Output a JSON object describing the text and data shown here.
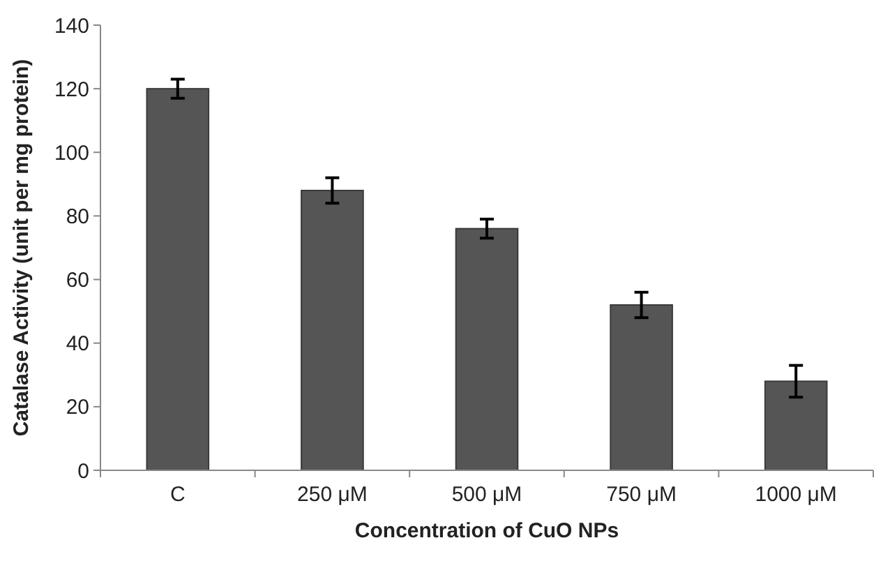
{
  "chart_data": {
    "type": "bar",
    "xlabel": "Concentration of CuO NPs",
    "ylabel": "Catalase Activity (unit per mg protein)",
    "categories": [
      "C",
      "250 μM",
      "500 μM",
      "750 μM",
      "1000 μM"
    ],
    "values": [
      120,
      88,
      76,
      52,
      28
    ],
    "errors": [
      3,
      4,
      3,
      4,
      5
    ],
    "color": "#555555",
    "ylim": [
      0,
      140
    ],
    "yticks": [
      0,
      20,
      40,
      60,
      80,
      100,
      120,
      140
    ],
    "grid": false
  }
}
